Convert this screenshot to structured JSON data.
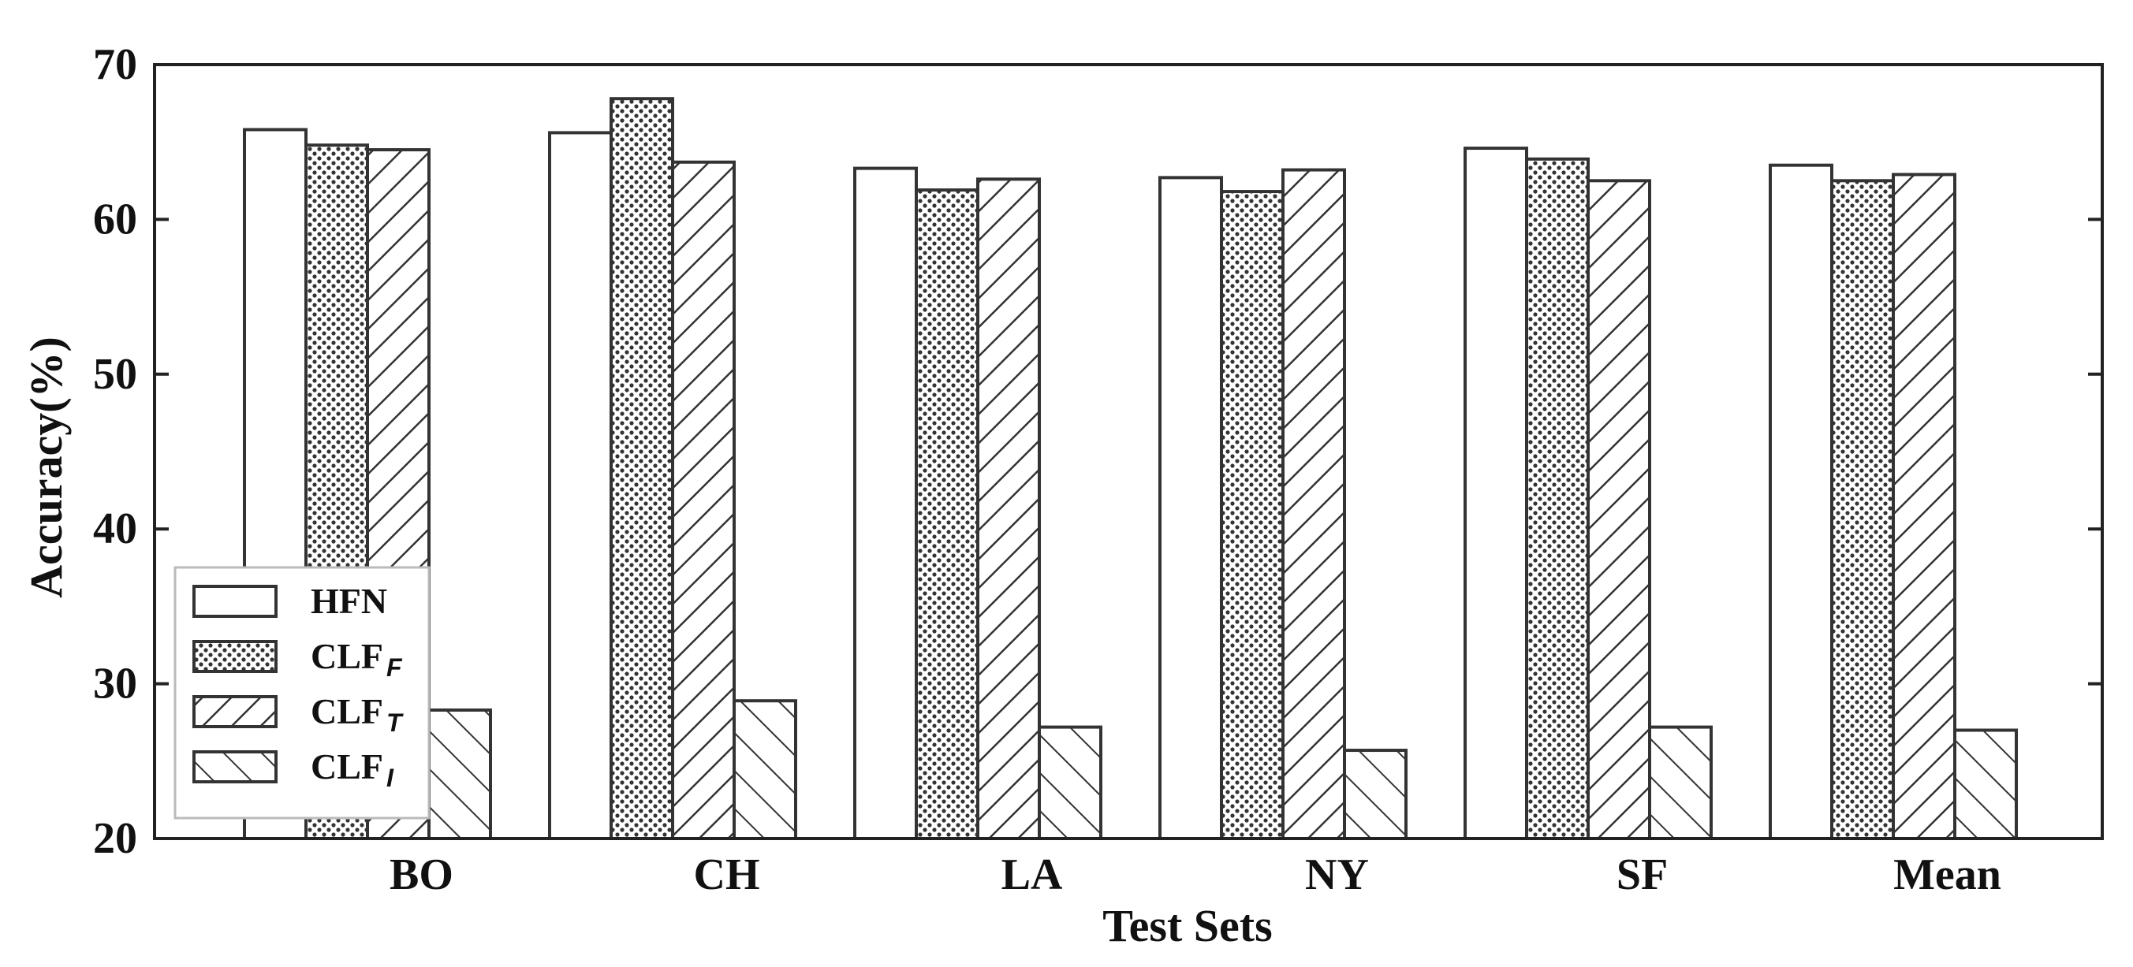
{
  "chart_data": {
    "type": "bar",
    "xlabel": "Test Sets",
    "ylabel": "Accuracy(%)",
    "ylim": [
      20,
      70
    ],
    "yticks": [
      20,
      30,
      40,
      50,
      60,
      70
    ],
    "categories": [
      "BO",
      "CH",
      "LA",
      "NY",
      "SF",
      "Mean"
    ],
    "series": [
      {
        "name": "HFN",
        "pattern": "none",
        "values": [
          65.8,
          65.6,
          63.3,
          62.7,
          64.6,
          63.5
        ]
      },
      {
        "name": "CLF_F",
        "pattern": "dots",
        "values": [
          64.8,
          67.8,
          61.9,
          61.8,
          63.9,
          62.5
        ]
      },
      {
        "name": "CLF_T",
        "pattern": "forward-hatch",
        "values": [
          64.5,
          63.7,
          62.6,
          63.2,
          62.5,
          62.9
        ]
      },
      {
        "name": "CLF_I",
        "pattern": "back-hatch",
        "values": [
          28.3,
          28.9,
          27.2,
          25.7,
          27.2,
          27.0
        ]
      }
    ],
    "legend": {
      "position": "lower-left",
      "entries": [
        {
          "base": "HFN",
          "sub": ""
        },
        {
          "base": "CLF",
          "sub": "F"
        },
        {
          "base": "CLF",
          "sub": "T"
        },
        {
          "base": "CLF",
          "sub": "I"
        }
      ]
    },
    "grid": false,
    "colors": {
      "edge": "#333333",
      "pattern": "#333333",
      "fill": "#ffffff"
    }
  }
}
